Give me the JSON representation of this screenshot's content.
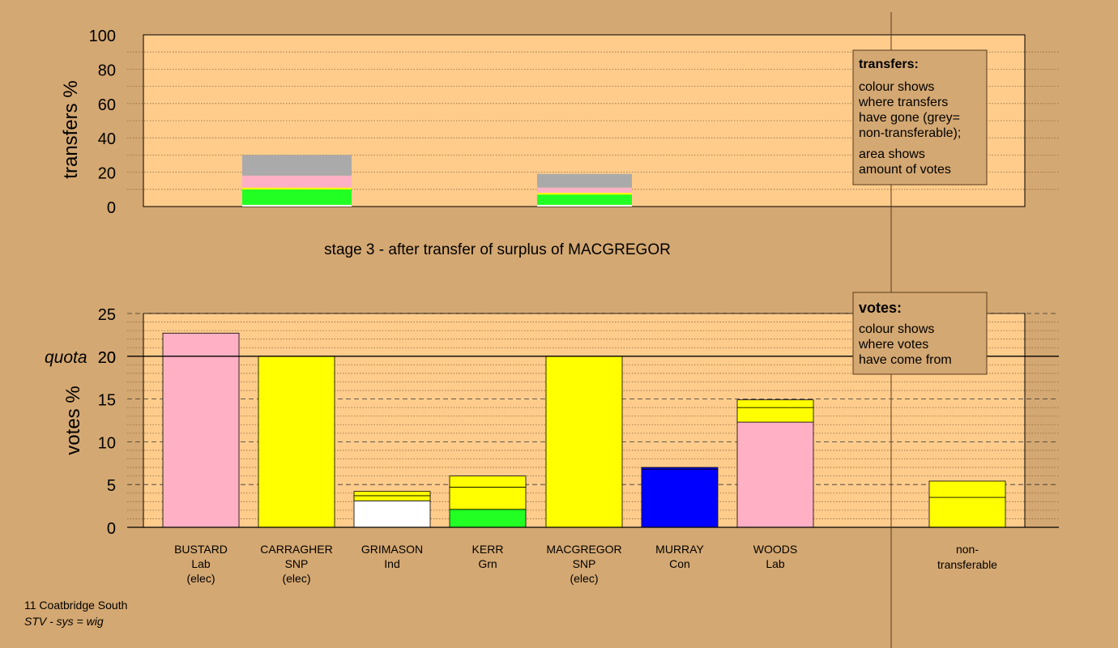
{
  "colors": {
    "background": "#d4a872",
    "plot_area": "#ffcc8c",
    "Lab": "#ffb0c4",
    "SNP": "#ffff00",
    "Grn": "#22ff22",
    "Con": "#0000ff",
    "Ind": "#ffffff",
    "non_transferable": "#aaaaaa"
  },
  "transfers_chart": {
    "ylabel": "transfers %",
    "yticks": [
      "0",
      "20",
      "40",
      "60",
      "80",
      "100"
    ],
    "caption": "stage 3 - after transfer of surplus of MACGREGOR"
  },
  "votes_chart": {
    "ylabel": "votes %",
    "yticks": [
      "0",
      "5",
      "10",
      "15",
      "20",
      "25"
    ],
    "quota_label": "quota",
    "quota_value": 20
  },
  "legend_transfers": {
    "title": "transfers:",
    "lines1": [
      "colour shows",
      "where transfers",
      "have gone (grey=",
      "non-transferable);"
    ],
    "lines2": [
      "area shows",
      "amount of votes"
    ]
  },
  "legend_votes": {
    "title": "votes:",
    "lines": [
      "colour shows",
      "where votes",
      "have come from"
    ]
  },
  "candidates": [
    {
      "name": "BUSTARD",
      "party": "Lab",
      "status": "(elec)"
    },
    {
      "name": "CARRAGHER",
      "party": "SNP",
      "status": "(elec)"
    },
    {
      "name": "GRIMASON",
      "party": "Ind",
      "status": ""
    },
    {
      "name": "KERR",
      "party": "Grn",
      "status": ""
    },
    {
      "name": "MACGREGOR",
      "party": "SNP",
      "status": "(elec)"
    },
    {
      "name": "MURRAY",
      "party": "Con",
      "status": ""
    },
    {
      "name": "WOODS",
      "party": "Lab",
      "status": ""
    }
  ],
  "nontransferable_label": [
    "non-",
    "transferable"
  ],
  "footer": {
    "ward": "11 Coatbridge South",
    "system": "STV - sys = wig"
  },
  "chart_data": [
    {
      "type": "bar",
      "stacked": true,
      "title": "stage 3 - after transfer of surplus of MACGREGOR",
      "ylabel": "transfers %",
      "ylim": [
        0,
        100
      ],
      "categories": [
        "GRIMASON",
        "KERR"
      ],
      "segments": [
        [
          {
            "color": "Ind",
            "value": 1
          },
          {
            "color": "Grn",
            "value": 9
          },
          {
            "color": "SNP",
            "value": 1
          },
          {
            "color": "Lab",
            "value": 7
          },
          {
            "color": "non_transferable",
            "value": 12
          }
        ],
        [
          {
            "color": "Ind",
            "value": 1
          },
          {
            "color": "Grn",
            "value": 6
          },
          {
            "color": "SNP",
            "value": 1
          },
          {
            "color": "Lab",
            "value": 3
          },
          {
            "color": "non_transferable",
            "value": 8
          }
        ]
      ]
    },
    {
      "type": "bar",
      "stacked": true,
      "ylabel": "votes %",
      "ylim": [
        0,
        25
      ],
      "quota": 20,
      "categories": [
        "BUSTARD",
        "CARRAGHER",
        "GRIMASON",
        "KERR",
        "MACGREGOR",
        "MURRAY",
        "WOODS",
        "non-transferable"
      ],
      "segments": [
        [
          {
            "color": "Lab",
            "value": 22.7
          }
        ],
        [
          {
            "color": "SNP",
            "value": 20.0
          }
        ],
        [
          {
            "color": "Ind",
            "value": 3.1
          },
          {
            "color": "SNP",
            "value": 0.6
          },
          {
            "color": "SNP",
            "value": 0.5
          }
        ],
        [
          {
            "color": "Grn",
            "value": 2.1
          },
          {
            "color": "SNP",
            "value": 2.6
          },
          {
            "color": "SNP",
            "value": 1.3
          }
        ],
        [
          {
            "color": "SNP",
            "value": 20.0
          }
        ],
        [
          {
            "color": "Con",
            "value": 6.8
          },
          {
            "color": "Con",
            "value": 0.2
          }
        ],
        [
          {
            "color": "Lab",
            "value": 12.3
          },
          {
            "color": "SNP",
            "value": 1.7
          },
          {
            "color": "SNP",
            "value": 0.9
          }
        ],
        [
          {
            "color": "SNP",
            "value": 3.5
          },
          {
            "color": "SNP",
            "value": 1.9
          }
        ]
      ]
    }
  ]
}
